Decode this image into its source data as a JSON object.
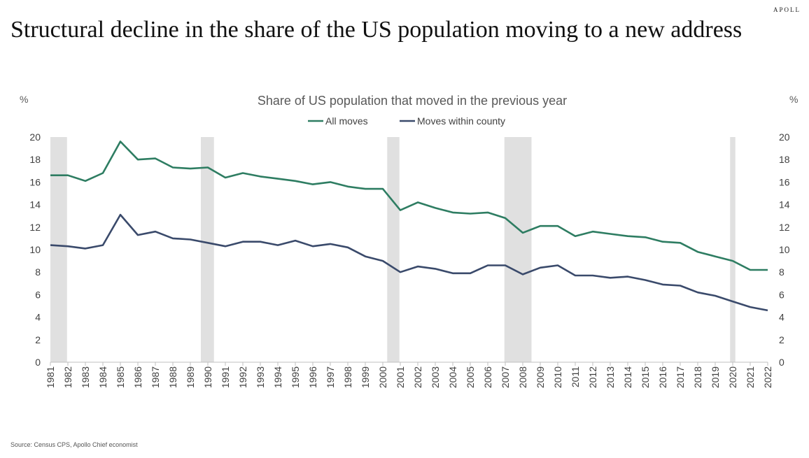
{
  "brand": {
    "logo_text": "APOLL"
  },
  "page": {
    "title": "Structural decline in the share of the US population moving to a new address",
    "source": "Source: Census CPS, Apollo Chief economist"
  },
  "chart_data": {
    "type": "line",
    "title": "Share of US population that moved in the previous year",
    "unit_left": "%",
    "unit_right": "%",
    "x": [
      "1981",
      "1982",
      "1983",
      "1984",
      "1985",
      "1986",
      "1987",
      "1988",
      "1989",
      "1990",
      "1991",
      "1992",
      "1993",
      "1994",
      "1995",
      "1996",
      "1997",
      "1998",
      "1999",
      "2000",
      "2001",
      "2002",
      "2003",
      "2004",
      "2005",
      "2006",
      "2007",
      "2008",
      "2009",
      "2010",
      "2011",
      "2012",
      "2013",
      "2014",
      "2015",
      "2016",
      "2017",
      "2018",
      "2019",
      "2020",
      "2021",
      "2022"
    ],
    "ylim": [
      0,
      20
    ],
    "yticks": [
      0,
      2,
      4,
      6,
      8,
      10,
      12,
      14,
      16,
      18,
      20
    ],
    "grid": false,
    "legend_position": "top",
    "series": [
      {
        "name": "All moves",
        "color": "#2e7d62",
        "values": [
          16.6,
          16.6,
          16.1,
          16.8,
          19.6,
          18.0,
          18.1,
          17.3,
          17.2,
          17.3,
          16.4,
          16.8,
          16.5,
          16.3,
          16.1,
          15.8,
          16.0,
          15.6,
          15.4,
          15.4,
          13.5,
          14.2,
          13.7,
          13.3,
          13.2,
          13.3,
          12.8,
          11.5,
          12.1,
          12.1,
          11.2,
          11.6,
          11.4,
          11.2,
          11.1,
          10.7,
          10.6,
          9.8,
          9.4,
          9.0,
          8.2,
          8.2
        ]
      },
      {
        "name": "Moves within county",
        "color": "#3a4a6b",
        "values": [
          10.4,
          10.3,
          10.1,
          10.4,
          13.1,
          11.3,
          11.6,
          11.0,
          10.9,
          10.6,
          10.3,
          10.7,
          10.7,
          10.4,
          10.8,
          10.3,
          10.5,
          10.2,
          9.4,
          9.0,
          8.0,
          8.5,
          8.3,
          7.9,
          7.9,
          8.6,
          8.6,
          7.8,
          8.4,
          8.6,
          7.7,
          7.7,
          7.5,
          7.6,
          7.3,
          6.9,
          6.8,
          6.2,
          5.9,
          5.4,
          4.9,
          4.6
        ]
      }
    ],
    "recession_shading": [
      {
        "from": 1981,
        "to": 1981.95
      },
      {
        "from": 1989.6,
        "to": 1990.35
      },
      {
        "from": 2000.25,
        "to": 2000.95
      },
      {
        "from": 2006.95,
        "to": 2008.5
      },
      {
        "from": 2019.85,
        "to": 2020.15
      }
    ],
    "shading_color": "#e0e0e0"
  }
}
